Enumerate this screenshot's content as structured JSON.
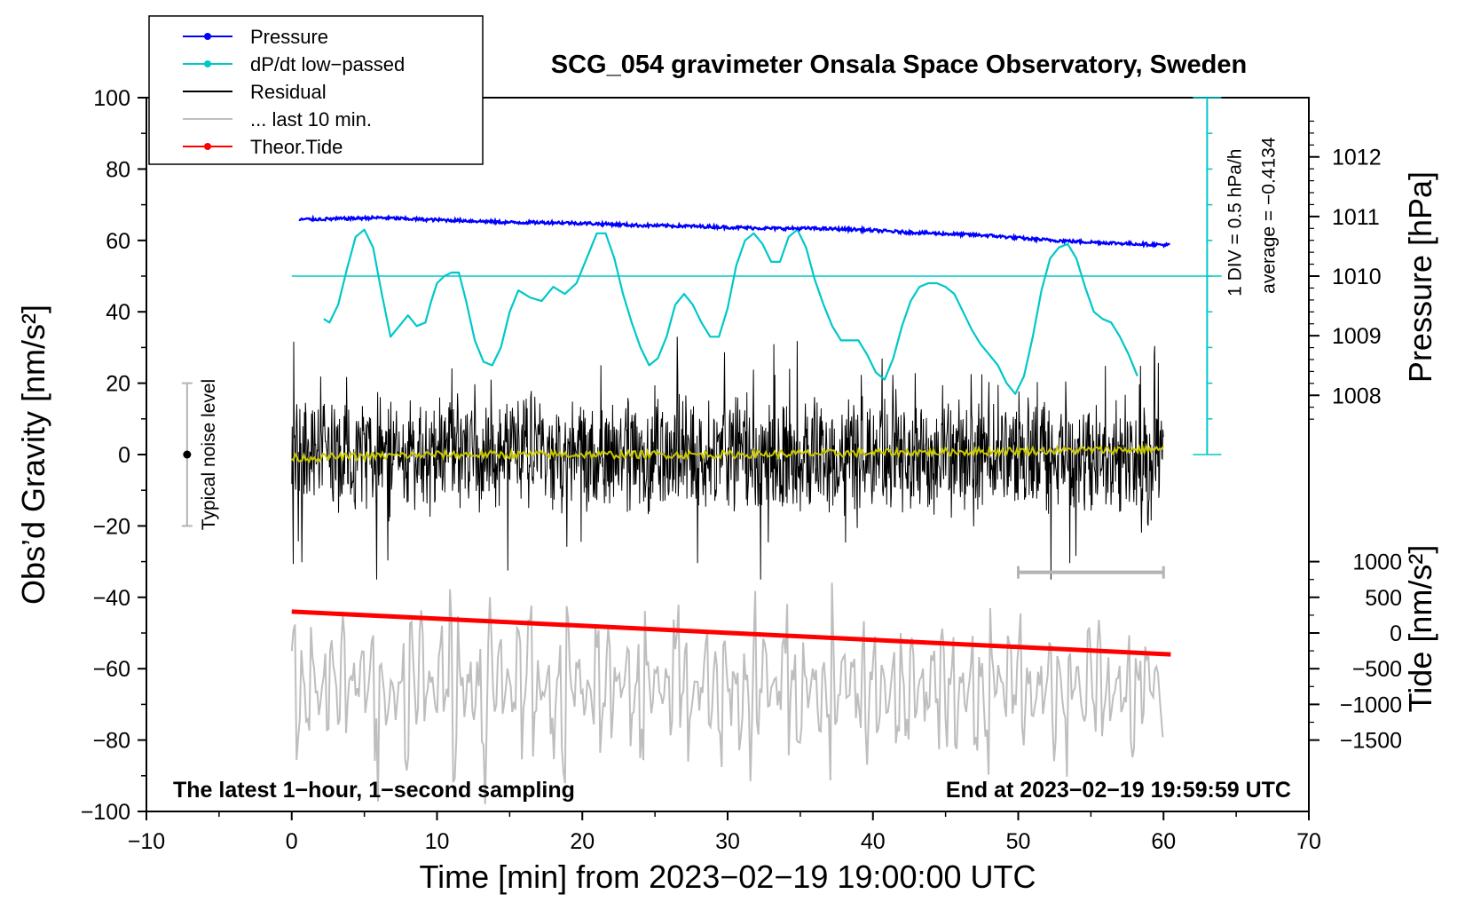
{
  "chart_data": {
    "type": "line",
    "title": "SCG_054 gravimeter Onsala Space Observatory, Sweden",
    "xlabel": "Time [min] from 2023−02−19 19:00:00 UTC",
    "ylabel_left": "Obs’d Gravity [nm/s²]",
    "ylabel_right_top": "Pressure [hPa]",
    "ylabel_right_bottom": "Tide [nm/s²]",
    "xlim": [
      -10,
      70
    ],
    "ylim": [
      -100,
      100
    ],
    "x_ticks": [
      "−10",
      "0",
      "10",
      "20",
      "30",
      "40",
      "50",
      "60",
      "70"
    ],
    "y_ticks": [
      "100",
      "80",
      "60",
      "40",
      "20",
      "0",
      "−20",
      "−40",
      "−60",
      "−80",
      "−100"
    ],
    "pressure_axis": {
      "ticks": [
        "1012",
        "1011",
        "1010",
        "1009",
        "1008"
      ],
      "values": [
        1012,
        1011,
        1010,
        1009,
        1008
      ],
      "ref_value": 1010,
      "ref_gravity_equiv": 50,
      "gravity_per_hpa": 16.7
    },
    "tide_axis": {
      "ticks": [
        "1000",
        "500",
        "0",
        "−500",
        "−1000",
        "−1500"
      ],
      "values": [
        1000,
        500,
        0,
        -500,
        -1000,
        -1500
      ],
      "gravity_per_unit": 0.02,
      "zero_gravity_equiv": -50
    },
    "legend": [
      {
        "label": "Pressure",
        "color": "#0000ff",
        "marker": true
      },
      {
        "label": "dP/dt low−passed",
        "color": "#00c8c8",
        "marker": true
      },
      {
        "label": "Residual",
        "color": "#000000",
        "marker": false
      },
      {
        "label": "... last 10 min.",
        "color": "#bebebe",
        "marker": false
      },
      {
        "label": "Theor.Tide",
        "color": "#ff0000",
        "marker": true
      }
    ],
    "annotations": {
      "bottom_left": "The latest 1−hour, 1−second sampling",
      "bottom_right": "End at 2023−02−19 19:59:59 UTC",
      "noise_label": "Typical noise level",
      "div_label": "1 DIV = 0.5 hPa/h",
      "average_label": "average = −0.4134"
    },
    "noise_bar": {
      "x": -7.2,
      "y_low": -20,
      "y_high": 20,
      "center": 0
    },
    "last10_bar": {
      "x_start": 50,
      "x_end": 60,
      "y": -33
    },
    "dpdt_scale": {
      "x": 63,
      "y_bottom": 0,
      "y_top": 100,
      "zero_level": 50,
      "div_hpa_per_h": 0.5
    },
    "series": [
      {
        "name": "Pressure",
        "color": "#0000ff",
        "x": [
          0.5,
          3,
          6,
          9,
          12,
          15,
          18,
          21,
          24,
          27,
          30,
          33,
          36,
          39,
          42,
          45,
          48,
          51,
          54,
          57,
          60.5
        ],
        "y": [
          1010.95,
          1010.96,
          1010.98,
          1010.95,
          1010.93,
          1010.9,
          1010.9,
          1010.88,
          1010.85,
          1010.84,
          1010.82,
          1010.8,
          1010.8,
          1010.78,
          1010.74,
          1010.71,
          1010.68,
          1010.62,
          1010.58,
          1010.55,
          1010.52
        ]
      },
      {
        "name": "dP/dt low−passed",
        "color": "#00c8c8",
        "x": [
          2.2,
          2.6,
          3.2,
          3.8,
          4.4,
          5,
          5.6,
          6.2,
          6.8,
          7.4,
          8,
          8.6,
          9.2,
          9.6,
          10,
          10.5,
          11,
          11.5,
          12,
          12.6,
          13.2,
          13.8,
          14.4,
          15,
          15.6,
          16.4,
          17.2,
          18,
          18.8,
          19.6,
          20.4,
          21,
          21.6,
          22.2,
          22.8,
          23.4,
          24,
          24.6,
          25.2,
          25.8,
          26.4,
          27,
          27.6,
          28.2,
          28.8,
          29.4,
          30,
          30.6,
          31.2,
          31.8,
          32.4,
          33,
          33.6,
          34.2,
          34.8,
          35.4,
          36,
          36.6,
          37.2,
          37.8,
          38.4,
          39,
          39.6,
          40.2,
          40.8,
          41.4,
          42,
          42.6,
          43.2,
          43.8,
          44.4,
          45,
          45.6,
          46.2,
          46.8,
          47.4,
          48,
          48.6,
          49.2,
          49.8,
          50.4,
          51,
          51.6,
          52.2,
          52.8,
          53.4,
          54,
          54.6,
          55.2,
          55.8,
          56.4,
          57,
          57.6,
          58.2
        ],
        "y": [
          38,
          37,
          42,
          52,
          61,
          63,
          58,
          45,
          33,
          36,
          39,
          36,
          37,
          43,
          48,
          50,
          51,
          51,
          43,
          32,
          26,
          25,
          30,
          40,
          46,
          44,
          43,
          47,
          45,
          48,
          56,
          62,
          62,
          55,
          45,
          37,
          30,
          25,
          27,
          33,
          42,
          45,
          42,
          37,
          33,
          33,
          41,
          53,
          60,
          62,
          59,
          54,
          54,
          61,
          63,
          58,
          49,
          42,
          36,
          32,
          32,
          32,
          28,
          23,
          21,
          27,
          36,
          43,
          47,
          48,
          48,
          47,
          45,
          40,
          35,
          31,
          28,
          25,
          20,
          17,
          22,
          33,
          46,
          55,
          58,
          59,
          55,
          47,
          40,
          38,
          37,
          33,
          28,
          22
        ]
      },
      {
        "name": "Residual",
        "color": "#000000",
        "envelope_min": -35,
        "envelope_max": 33,
        "x_range": [
          0,
          60
        ]
      },
      {
        "name": "Residual smoothed",
        "color": "#c8c800",
        "x": [
          0,
          10,
          20,
          30,
          40,
          50,
          60
        ],
        "y": [
          -1,
          0,
          0,
          0,
          0.5,
          1,
          1.5
        ]
      },
      {
        "name": "... last 10 min.",
        "color": "#bebebe",
        "base_level": -65,
        "envelope_min": -98,
        "envelope_max": -29,
        "x_range": [
          0,
          60
        ]
      },
      {
        "name": "Theor.Tide",
        "color": "#ff0000",
        "x": [
          0,
          60.5
        ],
        "y": [
          -44,
          -56
        ]
      }
    ]
  }
}
